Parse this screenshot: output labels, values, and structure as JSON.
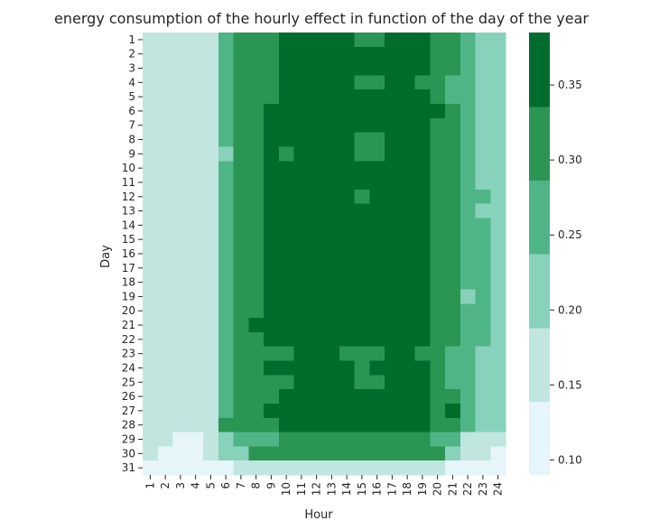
{
  "chart_data": {
    "type": "heatmap",
    "title": "energy consumption of the hourly effect in function of the day of the year",
    "xlabel": "Hour",
    "ylabel": "Day",
    "x": [
      "1",
      "2",
      "3",
      "4",
      "5",
      "6",
      "7",
      "8",
      "9",
      "10",
      "11",
      "12",
      "13",
      "14",
      "15",
      "16",
      "17",
      "18",
      "19",
      "20",
      "21",
      "22",
      "23",
      "24"
    ],
    "y": [
      "1",
      "2",
      "3",
      "4",
      "5",
      "6",
      "7",
      "8",
      "9",
      "10",
      "11",
      "12",
      "13",
      "14",
      "15",
      "16",
      "17",
      "18",
      "19",
      "20",
      "21",
      "22",
      "23",
      "24",
      "25",
      "26",
      "27",
      "28",
      "29",
      "30",
      "31"
    ],
    "colorbar": {
      "ticks": [
        "0.10",
        "0.15",
        "0.20",
        "0.25",
        "0.30",
        "0.35"
      ],
      "range": [
        0.09,
        0.385
      ],
      "bin_edges": [
        0.09,
        0.1392,
        0.1883,
        0.2375,
        0.2867,
        0.3358,
        0.385
      ],
      "colors": [
        "#e5f5f9",
        "#c0e6df",
        "#88d2bc",
        "#50b586",
        "#2b9553",
        "#016c2c"
      ]
    },
    "values": [
      [
        0.17,
        0.17,
        0.17,
        0.17,
        0.17,
        0.26,
        0.31,
        0.31,
        0.31,
        0.36,
        0.36,
        0.36,
        0.36,
        0.36,
        0.31,
        0.31,
        0.36,
        0.36,
        0.36,
        0.31,
        0.31,
        0.26,
        0.21,
        0.21
      ],
      [
        0.17,
        0.17,
        0.17,
        0.17,
        0.17,
        0.26,
        0.31,
        0.31,
        0.31,
        0.36,
        0.36,
        0.36,
        0.36,
        0.36,
        0.36,
        0.36,
        0.36,
        0.36,
        0.36,
        0.31,
        0.31,
        0.26,
        0.21,
        0.21
      ],
      [
        0.17,
        0.17,
        0.17,
        0.17,
        0.17,
        0.26,
        0.31,
        0.31,
        0.31,
        0.36,
        0.36,
        0.36,
        0.36,
        0.36,
        0.36,
        0.36,
        0.36,
        0.36,
        0.36,
        0.31,
        0.31,
        0.26,
        0.21,
        0.21
      ],
      [
        0.17,
        0.17,
        0.17,
        0.17,
        0.17,
        0.26,
        0.31,
        0.31,
        0.31,
        0.36,
        0.36,
        0.36,
        0.36,
        0.36,
        0.31,
        0.31,
        0.36,
        0.36,
        0.31,
        0.31,
        0.26,
        0.26,
        0.21,
        0.21
      ],
      [
        0.17,
        0.17,
        0.17,
        0.17,
        0.17,
        0.26,
        0.31,
        0.31,
        0.31,
        0.36,
        0.36,
        0.36,
        0.36,
        0.36,
        0.36,
        0.36,
        0.36,
        0.36,
        0.36,
        0.31,
        0.26,
        0.26,
        0.21,
        0.21
      ],
      [
        0.17,
        0.17,
        0.17,
        0.17,
        0.17,
        0.26,
        0.31,
        0.31,
        0.36,
        0.36,
        0.36,
        0.36,
        0.36,
        0.36,
        0.36,
        0.36,
        0.36,
        0.36,
        0.36,
        0.36,
        0.31,
        0.26,
        0.21,
        0.21
      ],
      [
        0.17,
        0.17,
        0.17,
        0.17,
        0.17,
        0.26,
        0.31,
        0.31,
        0.36,
        0.36,
        0.36,
        0.36,
        0.36,
        0.36,
        0.36,
        0.36,
        0.36,
        0.36,
        0.36,
        0.31,
        0.31,
        0.26,
        0.21,
        0.21
      ],
      [
        0.17,
        0.17,
        0.17,
        0.17,
        0.17,
        0.26,
        0.31,
        0.31,
        0.36,
        0.36,
        0.36,
        0.36,
        0.36,
        0.36,
        0.31,
        0.31,
        0.36,
        0.36,
        0.36,
        0.31,
        0.31,
        0.26,
        0.21,
        0.21
      ],
      [
        0.17,
        0.17,
        0.17,
        0.17,
        0.17,
        0.21,
        0.31,
        0.31,
        0.36,
        0.31,
        0.36,
        0.36,
        0.36,
        0.36,
        0.31,
        0.31,
        0.36,
        0.36,
        0.36,
        0.31,
        0.31,
        0.26,
        0.21,
        0.21
      ],
      [
        0.17,
        0.17,
        0.17,
        0.17,
        0.17,
        0.26,
        0.31,
        0.31,
        0.36,
        0.36,
        0.36,
        0.36,
        0.36,
        0.36,
        0.36,
        0.36,
        0.36,
        0.36,
        0.36,
        0.31,
        0.31,
        0.26,
        0.21,
        0.21
      ],
      [
        0.17,
        0.17,
        0.17,
        0.17,
        0.17,
        0.26,
        0.31,
        0.31,
        0.36,
        0.36,
        0.36,
        0.36,
        0.36,
        0.36,
        0.36,
        0.36,
        0.36,
        0.36,
        0.36,
        0.31,
        0.31,
        0.26,
        0.21,
        0.21
      ],
      [
        0.17,
        0.17,
        0.17,
        0.17,
        0.17,
        0.26,
        0.31,
        0.31,
        0.36,
        0.36,
        0.36,
        0.36,
        0.36,
        0.36,
        0.31,
        0.36,
        0.36,
        0.36,
        0.36,
        0.31,
        0.31,
        0.26,
        0.26,
        0.21
      ],
      [
        0.17,
        0.17,
        0.17,
        0.17,
        0.17,
        0.26,
        0.31,
        0.31,
        0.36,
        0.36,
        0.36,
        0.36,
        0.36,
        0.36,
        0.36,
        0.36,
        0.36,
        0.36,
        0.36,
        0.31,
        0.31,
        0.26,
        0.21,
        0.21
      ],
      [
        0.17,
        0.17,
        0.17,
        0.17,
        0.17,
        0.26,
        0.31,
        0.31,
        0.36,
        0.36,
        0.36,
        0.36,
        0.36,
        0.36,
        0.36,
        0.36,
        0.36,
        0.36,
        0.36,
        0.31,
        0.31,
        0.26,
        0.26,
        0.21
      ],
      [
        0.17,
        0.17,
        0.17,
        0.17,
        0.17,
        0.26,
        0.31,
        0.31,
        0.36,
        0.36,
        0.36,
        0.36,
        0.36,
        0.36,
        0.36,
        0.36,
        0.36,
        0.36,
        0.36,
        0.31,
        0.31,
        0.26,
        0.26,
        0.21
      ],
      [
        0.17,
        0.17,
        0.17,
        0.17,
        0.17,
        0.26,
        0.31,
        0.31,
        0.36,
        0.36,
        0.36,
        0.36,
        0.36,
        0.36,
        0.36,
        0.36,
        0.36,
        0.36,
        0.36,
        0.31,
        0.31,
        0.26,
        0.26,
        0.21
      ],
      [
        0.17,
        0.17,
        0.17,
        0.17,
        0.17,
        0.26,
        0.31,
        0.31,
        0.36,
        0.36,
        0.36,
        0.36,
        0.36,
        0.36,
        0.36,
        0.36,
        0.36,
        0.36,
        0.36,
        0.31,
        0.31,
        0.26,
        0.26,
        0.21
      ],
      [
        0.17,
        0.17,
        0.17,
        0.17,
        0.17,
        0.26,
        0.31,
        0.31,
        0.36,
        0.36,
        0.36,
        0.36,
        0.36,
        0.36,
        0.36,
        0.36,
        0.36,
        0.36,
        0.36,
        0.31,
        0.31,
        0.26,
        0.26,
        0.21
      ],
      [
        0.17,
        0.17,
        0.17,
        0.17,
        0.17,
        0.26,
        0.31,
        0.31,
        0.36,
        0.36,
        0.36,
        0.36,
        0.36,
        0.36,
        0.36,
        0.36,
        0.36,
        0.36,
        0.36,
        0.31,
        0.31,
        0.21,
        0.26,
        0.21
      ],
      [
        0.17,
        0.17,
        0.17,
        0.17,
        0.17,
        0.26,
        0.31,
        0.31,
        0.36,
        0.36,
        0.36,
        0.36,
        0.36,
        0.36,
        0.36,
        0.36,
        0.36,
        0.36,
        0.36,
        0.31,
        0.31,
        0.26,
        0.26,
        0.21
      ],
      [
        0.17,
        0.17,
        0.17,
        0.17,
        0.17,
        0.26,
        0.31,
        0.36,
        0.36,
        0.36,
        0.36,
        0.36,
        0.36,
        0.36,
        0.36,
        0.36,
        0.36,
        0.36,
        0.36,
        0.31,
        0.31,
        0.26,
        0.26,
        0.21
      ],
      [
        0.17,
        0.17,
        0.17,
        0.17,
        0.17,
        0.26,
        0.31,
        0.31,
        0.36,
        0.36,
        0.36,
        0.36,
        0.36,
        0.36,
        0.36,
        0.36,
        0.36,
        0.36,
        0.36,
        0.31,
        0.31,
        0.26,
        0.26,
        0.21
      ],
      [
        0.17,
        0.17,
        0.17,
        0.17,
        0.17,
        0.26,
        0.31,
        0.31,
        0.31,
        0.31,
        0.36,
        0.36,
        0.36,
        0.31,
        0.31,
        0.31,
        0.36,
        0.36,
        0.31,
        0.31,
        0.26,
        0.26,
        0.21,
        0.21
      ],
      [
        0.17,
        0.17,
        0.17,
        0.17,
        0.17,
        0.26,
        0.31,
        0.31,
        0.36,
        0.36,
        0.36,
        0.36,
        0.36,
        0.36,
        0.31,
        0.36,
        0.36,
        0.36,
        0.36,
        0.31,
        0.26,
        0.26,
        0.21,
        0.21
      ],
      [
        0.17,
        0.17,
        0.17,
        0.17,
        0.17,
        0.26,
        0.31,
        0.31,
        0.31,
        0.31,
        0.36,
        0.36,
        0.36,
        0.36,
        0.31,
        0.31,
        0.36,
        0.36,
        0.36,
        0.31,
        0.26,
        0.26,
        0.21,
        0.21
      ],
      [
        0.17,
        0.17,
        0.17,
        0.17,
        0.17,
        0.26,
        0.31,
        0.31,
        0.31,
        0.36,
        0.36,
        0.36,
        0.36,
        0.36,
        0.36,
        0.36,
        0.36,
        0.36,
        0.36,
        0.31,
        0.31,
        0.26,
        0.21,
        0.21
      ],
      [
        0.17,
        0.17,
        0.17,
        0.17,
        0.17,
        0.26,
        0.31,
        0.31,
        0.36,
        0.36,
        0.36,
        0.36,
        0.36,
        0.36,
        0.36,
        0.36,
        0.36,
        0.36,
        0.36,
        0.31,
        0.36,
        0.26,
        0.21,
        0.21
      ],
      [
        0.17,
        0.17,
        0.17,
        0.17,
        0.17,
        0.31,
        0.31,
        0.31,
        0.31,
        0.36,
        0.36,
        0.36,
        0.36,
        0.36,
        0.36,
        0.36,
        0.36,
        0.36,
        0.36,
        0.31,
        0.31,
        0.26,
        0.21,
        0.21
      ],
      [
        0.17,
        0.17,
        0.12,
        0.12,
        0.17,
        0.21,
        0.26,
        0.26,
        0.26,
        0.31,
        0.31,
        0.31,
        0.31,
        0.31,
        0.31,
        0.31,
        0.31,
        0.31,
        0.31,
        0.26,
        0.26,
        0.17,
        0.17,
        0.17
      ],
      [
        0.17,
        0.12,
        0.12,
        0.12,
        0.17,
        0.21,
        0.21,
        0.31,
        0.31,
        0.31,
        0.31,
        0.31,
        0.31,
        0.31,
        0.31,
        0.31,
        0.31,
        0.31,
        0.31,
        0.31,
        0.21,
        0.17,
        0.17,
        0.12
      ],
      [
        0.12,
        0.12,
        0.12,
        0.12,
        0.12,
        0.12,
        0.17,
        0.17,
        0.17,
        0.17,
        0.17,
        0.17,
        0.17,
        0.17,
        0.17,
        0.17,
        0.17,
        0.17,
        0.17,
        0.17,
        0.12,
        0.12,
        0.12,
        0.12
      ]
    ]
  }
}
